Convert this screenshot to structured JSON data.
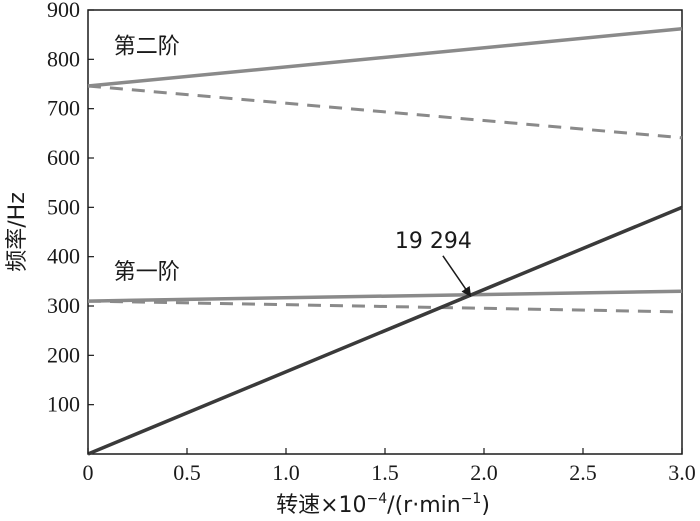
{
  "chart_data": {
    "type": "line",
    "title": "",
    "xlabel_main": "转速×10",
    "xlabel_exp": "−4",
    "xlabel_unit": "/(r·min",
    "xlabel_unit_exp": "−1",
    "xlabel_close": ")",
    "ylabel": "频率/Hz",
    "xlim": [
      0,
      3.0
    ],
    "ylim": [
      0,
      900
    ],
    "x_ticks": [
      0,
      0.5,
      1.0,
      1.5,
      2.0,
      2.5,
      3.0
    ],
    "x_tick_labels": [
      "0",
      "0.5",
      "1.0",
      "1.5",
      "2.0",
      "2.5",
      "3.0"
    ],
    "y_ticks": [
      100,
      200,
      300,
      400,
      500,
      600,
      700,
      800,
      900
    ],
    "y_tick_labels": [
      "100",
      "200",
      "300",
      "400",
      "500",
      "600",
      "700",
      "800",
      "900"
    ],
    "grid": false,
    "colors": {
      "mode": "#8a8a8a",
      "excitation": "#3a3a3a",
      "axis": "#1a1a1a"
    },
    "series": [
      {
        "x": [
          0,
          3.0
        ],
        "y": [
          746,
          862
        ],
        "style": "solid",
        "color": "#8a8a8a"
      },
      {
        "x": [
          0,
          3.0
        ],
        "y": [
          746,
          641
        ],
        "style": "dashed",
        "color": "#8a8a8a"
      },
      {
        "x": [
          0,
          3.0
        ],
        "y": [
          310,
          330
        ],
        "style": "solid",
        "color": "#8a8a8a"
      },
      {
        "x": [
          0,
          3.0
        ],
        "y": [
          310,
          288
        ],
        "style": "dashed",
        "color": "#8a8a8a"
      },
      {
        "x": [
          0,
          3.0
        ],
        "y": [
          0,
          500
        ],
        "style": "solid",
        "color": "#3a3a3a"
      }
    ],
    "annotations": [
      {
        "text": "第二阶",
        "x": 0.13,
        "y": 812,
        "kind": "label"
      },
      {
        "text": "第一阶",
        "x": 0.13,
        "y": 355,
        "kind": "label"
      },
      {
        "text": "19 294",
        "x": 1.55,
        "y": 418,
        "kind": "callout",
        "arrow_to": [
          1.9294,
          321.6
        ]
      }
    ]
  }
}
